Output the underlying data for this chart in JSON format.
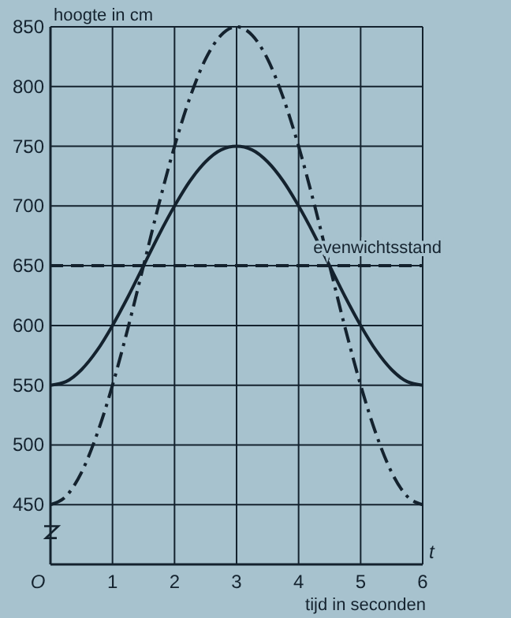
{
  "chart_data": {
    "type": "line",
    "ylabel": "hoogte in cm",
    "xlabel": "tijd in seconden",
    "annotations": [
      "t"
    ],
    "x": [
      0,
      0.25,
      0.5,
      0.75,
      1,
      1.25,
      1.5,
      1.75,
      2,
      2.25,
      2.5,
      2.75,
      3,
      3.25,
      3.5,
      3.75,
      4,
      4.25,
      4.5,
      4.75,
      5,
      5.25,
      5.5,
      5.75,
      6
    ],
    "series": [
      {
        "color": "#14222e",
        "line_style": "solid",
        "values": [
          550,
          553,
          563,
          579,
          600,
          624,
          650,
          676,
          700,
          721,
          737,
          747,
          750,
          747,
          737,
          721,
          700,
          676,
          650,
          624,
          600,
          579,
          563,
          553,
          550
        ]
      },
      {
        "color": "#14222e",
        "line_style": "dashed",
        "values": [
          450,
          457,
          477,
          509,
          550,
          598,
          650,
          702,
          750,
          791,
          823,
          843,
          850,
          843,
          823,
          791,
          750,
          702,
          650,
          598,
          550,
          509,
          477,
          457,
          450
        ]
      }
    ],
    "xlim": [
      0,
      6
    ],
    "xticks": [
      {
        "value": 0,
        "label": "O"
      },
      1,
      2,
      3,
      4,
      5,
      6
    ],
    "ylim": [
      400,
      850
    ],
    "yticks": [
      {
        "value": 400,
        "label": null
      },
      450,
      500,
      550,
      600,
      650,
      700,
      750,
      800,
      850
    ],
    "grid": true,
    "ref_lines": [
      {
        "axis": "y",
        "value": 650,
        "label": "evenwichtsstand",
        "line_style": "dashed"
      }
    ]
  }
}
